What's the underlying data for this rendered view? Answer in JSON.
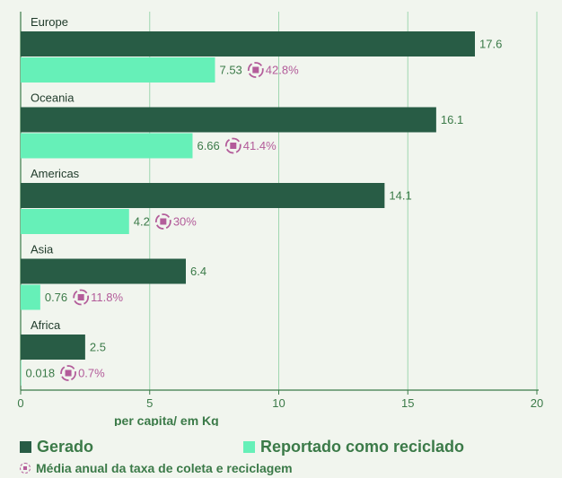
{
  "chart_data": {
    "type": "bar",
    "orientation": "horizontal",
    "categories": [
      "Europe",
      "Oceania",
      "Americas",
      "Asia",
      "Africa"
    ],
    "series": [
      {
        "name": "Gerado",
        "values": [
          17.6,
          16.1,
          14.1,
          6.4,
          2.5
        ],
        "labels": [
          "17.6",
          "16.1",
          "14.1",
          "6.4",
          "2.5"
        ],
        "color": "#285c45"
      },
      {
        "name": "Reportado como reciclado",
        "values": [
          7.53,
          6.66,
          4.2,
          0.76,
          0.018
        ],
        "labels": [
          "7.53",
          "6.66",
          "4.2",
          "0.76",
          "0.018"
        ],
        "color": "#66f0b8"
      }
    ],
    "rates": [
      "42.8%",
      "41.4%",
      "30%",
      "11.8%",
      "0.7%"
    ],
    "xlim": [
      0,
      20
    ],
    "xticks": [
      "0",
      "5",
      "10",
      "15",
      "20"
    ],
    "xlabel": "per capita/ em Kg",
    "grid": true,
    "legend": {
      "generated": "Gerado",
      "recycled": "Reportado como reciclado",
      "rate": "Média anual da taxa de coleta e reciclagem"
    },
    "colors": {
      "generated": "#285c45",
      "recycled": "#66f0b8",
      "rate": "#b35c9a",
      "grid": "#9fd6b0",
      "axis": "#3b7a48",
      "background": "#f1f5ee"
    }
  }
}
